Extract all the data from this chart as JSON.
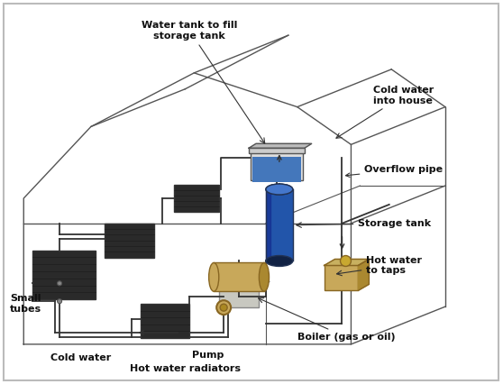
{
  "bg_color": "#ffffff",
  "border_color": "#aaaaaa",
  "house_line_color": "#555555",
  "pipe_color": "#333333",
  "label_color": "#111111",
  "label_fontsize": 8.0,
  "radiator_color": "#2a2a2a",
  "storage_tank_body": "#2255aa",
  "storage_tank_top": "#4477cc",
  "storage_tank_bot": "#112244",
  "water_tank_body": "#aabbcc",
  "water_tank_water": "#4477bb",
  "boiler_body": "#c8a85a",
  "boiler_base": "#c0c0b8",
  "pump_color": "#c8a85a",
  "tap_body": "#c8a85a",
  "tap_top": "#c8b060",
  "labels": {
    "water_tank": "Water tank to fill\nstorage tank",
    "cold_water_house": "Cold water\ninto house",
    "overflow_pipe": "Overflow pipe",
    "storage_tank": "Storage tank",
    "hot_water_taps": "Hot water\nto taps",
    "small_tubes": "Small\ntubes",
    "cold_water": "Cold water",
    "pump": "Pump",
    "hot_water_radiators": "Hot water radiators",
    "boiler": "Boiler (gas or oil)"
  }
}
